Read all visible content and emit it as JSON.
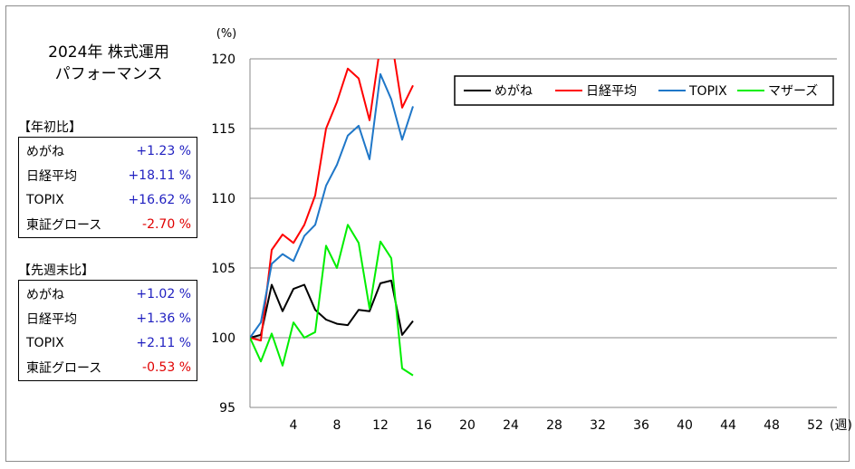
{
  "title_line1": "2024年 株式運用",
  "title_line2": "パフォーマンス",
  "ytd": {
    "label": "【年初比】",
    "rows": [
      {
        "name": "めがね",
        "value": "+1.23 %",
        "sign": "pos"
      },
      {
        "name": "日経平均",
        "value": "+18.11 %",
        "sign": "pos"
      },
      {
        "name": "TOPIX",
        "value": "+16.62 %",
        "sign": "pos"
      },
      {
        "name": "東証グロース",
        "value": "-2.70 %",
        "sign": "neg"
      }
    ]
  },
  "wow": {
    "label": "【先週末比】",
    "rows": [
      {
        "name": "めがね",
        "value": "+1.02 %",
        "sign": "pos"
      },
      {
        "name": "日経平均",
        "value": "+1.36 %",
        "sign": "pos"
      },
      {
        "name": "TOPIX",
        "value": "+2.11 %",
        "sign": "pos"
      },
      {
        "name": "東証グロース",
        "value": "-0.53 %",
        "sign": "neg"
      }
    ]
  },
  "chart_data": {
    "type": "line",
    "yunit": "(%)",
    "xunit": "(週)",
    "xlim": [
      0,
      54
    ],
    "ylim": [
      95,
      120
    ],
    "xticks": [
      4,
      8,
      12,
      16,
      20,
      24,
      28,
      32,
      36,
      40,
      44,
      48,
      52
    ],
    "yticks": [
      95,
      100,
      105,
      110,
      115,
      120
    ],
    "grid": true,
    "legend_position": "top-right",
    "series": [
      {
        "name": "めがね",
        "color": "#000000",
        "x": [
          0,
          1,
          2,
          3,
          4,
          5,
          6,
          7,
          8,
          9,
          10,
          11,
          12,
          13,
          14,
          15
        ],
        "values": [
          100.0,
          100.2,
          103.8,
          101.9,
          103.5,
          103.8,
          102.0,
          101.3,
          101.0,
          100.9,
          102.0,
          101.9,
          103.9,
          104.1,
          100.2,
          101.2
        ]
      },
      {
        "name": "日経平均",
        "color": "#ff0000",
        "x": [
          0,
          1,
          2,
          3,
          4,
          5,
          6,
          7,
          8,
          9,
          10,
          11,
          12,
          13,
          14,
          15
        ],
        "values": [
          100.0,
          99.8,
          106.3,
          107.4,
          106.8,
          108.1,
          110.2,
          115.0,
          116.9,
          119.3,
          118.6,
          115.6,
          121.0,
          121.5,
          116.5,
          118.1
        ]
      },
      {
        "name": "TOPIX",
        "color": "#1f77c8",
        "x": [
          0,
          1,
          2,
          3,
          4,
          5,
          6,
          7,
          8,
          9,
          10,
          11,
          12,
          13,
          14,
          15
        ],
        "values": [
          100.0,
          101.1,
          105.3,
          106.0,
          105.5,
          107.3,
          108.1,
          110.9,
          112.4,
          114.5,
          115.2,
          112.8,
          118.9,
          117.1,
          114.2,
          116.6
        ]
      },
      {
        "name": "マザーズ",
        "color": "#00ee00",
        "x": [
          0,
          1,
          2,
          3,
          4,
          5,
          6,
          7,
          8,
          9,
          10,
          11,
          12,
          13,
          14,
          15
        ],
        "values": [
          100.0,
          98.3,
          100.3,
          98.0,
          101.1,
          100.0,
          100.4,
          106.6,
          105.0,
          108.1,
          106.8,
          102.1,
          106.9,
          105.7,
          97.8,
          97.3
        ]
      }
    ]
  }
}
